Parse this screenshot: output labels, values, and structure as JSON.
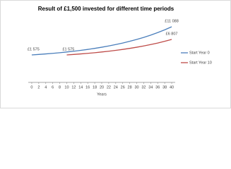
{
  "chart_data": {
    "type": "line",
    "title": "Result of £1,500 invested for different time periods",
    "x_label": "Years",
    "x": [
      0,
      2,
      4,
      6,
      8,
      10,
      12,
      14,
      16,
      18,
      20,
      22,
      24,
      26,
      28,
      30,
      32,
      34,
      36,
      38,
      40
    ],
    "xlim": [
      -1,
      41
    ],
    "xticks": [
      0,
      2,
      4,
      6,
      8,
      10,
      12,
      14,
      16,
      18,
      20,
      22,
      24,
      26,
      28,
      30,
      32,
      34,
      36,
      38,
      40
    ],
    "series": [
      {
        "name": "Start Year 0",
        "color": "#4a7ebb",
        "values": [
          1575,
          1736,
          1914,
          2111,
          2327,
          2566,
          2828,
          3118,
          3438,
          3790,
          4179,
          4607,
          5080,
          5600,
          6174,
          6807,
          7505,
          8274,
          9122,
          10057,
          11088
        ],
        "value_labels": [
          "£1 575",
          null,
          null,
          null,
          null,
          null,
          null,
          null,
          null,
          null,
          null,
          null,
          null,
          null,
          null,
          null,
          null,
          null,
          null,
          null,
          "£11 088"
        ]
      },
      {
        "name": "Start Year 10",
        "color": "#be4b48",
        "values": [
          null,
          null,
          null,
          null,
          null,
          1575,
          1736,
          1914,
          2111,
          2327,
          2566,
          2828,
          3118,
          3438,
          3790,
          4179,
          4607,
          5080,
          5600,
          6174,
          6807
        ],
        "value_labels": [
          null,
          null,
          null,
          null,
          null,
          "£1 575",
          null,
          null,
          null,
          null,
          null,
          null,
          null,
          null,
          null,
          null,
          null,
          null,
          null,
          null,
          "£6 807"
        ]
      }
    ],
    "legend": "right"
  }
}
